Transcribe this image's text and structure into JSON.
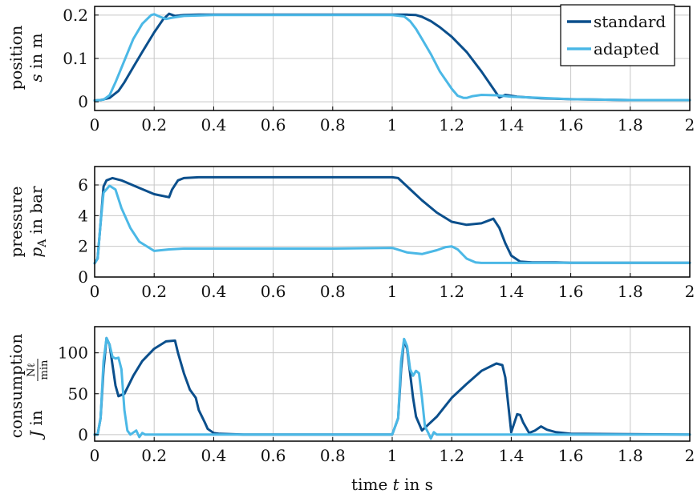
{
  "colors": {
    "standard": "#0b4f8c",
    "adapted": "#4bb8e6",
    "grid": "#c8c8c8",
    "axis": "#000000"
  },
  "xlabel": {
    "prefix": "time ",
    "var": "t",
    "suffix": " in s"
  },
  "legend": {
    "placement": "top-right",
    "standard": "standard",
    "adapted": "adapted"
  },
  "chart_data": [
    {
      "type": "line",
      "ylabel_line1": {
        "text": "position"
      },
      "ylabel_line2": {
        "var": "s",
        "rest": " in m"
      },
      "xlim": [
        0,
        2
      ],
      "ylim": [
        -0.02,
        0.22
      ],
      "xticks": [
        0,
        0.2,
        0.4,
        0.6,
        0.8,
        1,
        1.2,
        1.4,
        1.6,
        1.8,
        2
      ],
      "xticklabels": [
        "0",
        "0.2",
        "0.4",
        "0.6",
        "0.8",
        "1",
        "1.2",
        "1.4",
        "1.6",
        "1.8",
        "2"
      ],
      "yticks": [
        0,
        0.1,
        0.2
      ],
      "yticklabels": [
        "0",
        "0.1",
        "0.2"
      ],
      "grid": true,
      "series": [
        {
          "name": "standard",
          "x": [
            0,
            0.02,
            0.05,
            0.08,
            0.1,
            0.13,
            0.16,
            0.2,
            0.23,
            0.25,
            0.27,
            0.3,
            0.35,
            0.5,
            0.8,
            1.0,
            1.05,
            1.08,
            1.1,
            1.13,
            1.16,
            1.2,
            1.25,
            1.3,
            1.34,
            1.36,
            1.38,
            1.42,
            1.5,
            1.6,
            1.8,
            2.0
          ],
          "y": [
            0.003,
            0.004,
            0.009,
            0.025,
            0.045,
            0.08,
            0.115,
            0.16,
            0.19,
            0.203,
            0.198,
            0.2,
            0.201,
            0.201,
            0.201,
            0.201,
            0.201,
            0.2,
            0.196,
            0.186,
            0.172,
            0.15,
            0.115,
            0.07,
            0.03,
            0.01,
            0.016,
            0.012,
            0.008,
            0.006,
            0.004,
            0.004
          ]
        },
        {
          "name": "adapted",
          "x": [
            0,
            0.03,
            0.05,
            0.07,
            0.1,
            0.13,
            0.16,
            0.19,
            0.2,
            0.22,
            0.24,
            0.26,
            0.3,
            0.4,
            0.6,
            0.8,
            1.0,
            1.04,
            1.06,
            1.08,
            1.1,
            1.13,
            1.16,
            1.2,
            1.22,
            1.24,
            1.25,
            1.27,
            1.3,
            1.35,
            1.4,
            1.5,
            1.6,
            1.8,
            2.0
          ],
          "y": [
            0.003,
            0.005,
            0.015,
            0.045,
            0.095,
            0.145,
            0.18,
            0.2,
            0.202,
            0.196,
            0.191,
            0.194,
            0.198,
            0.2,
            0.2,
            0.2,
            0.2,
            0.197,
            0.186,
            0.168,
            0.145,
            0.11,
            0.07,
            0.03,
            0.014,
            0.009,
            0.009,
            0.013,
            0.016,
            0.015,
            0.012,
            0.009,
            0.006,
            0.004,
            0.004
          ]
        }
      ]
    },
    {
      "type": "line",
      "ylabel_line1": {
        "text": "pressure"
      },
      "ylabel_line2": {
        "var": "p",
        "sub": "A",
        "rest": " in bar"
      },
      "xlim": [
        0,
        2
      ],
      "ylim": [
        0,
        7.2
      ],
      "xticks": [
        0,
        0.2,
        0.4,
        0.6,
        0.8,
        1,
        1.2,
        1.4,
        1.6,
        1.8,
        2
      ],
      "xticklabels": [
        "0",
        "0.2",
        "0.4",
        "0.6",
        "0.8",
        "1",
        "1.2",
        "1.4",
        "1.6",
        "1.8",
        "2"
      ],
      "yticks": [
        0,
        2,
        4,
        6
      ],
      "yticklabels": [
        "0",
        "2",
        "4",
        "6"
      ],
      "grid": true,
      "series": [
        {
          "name": "standard",
          "x": [
            0,
            0.01,
            0.02,
            0.03,
            0.04,
            0.06,
            0.09,
            0.15,
            0.2,
            0.25,
            0.26,
            0.28,
            0.3,
            0.35,
            0.5,
            0.8,
            1.0,
            1.02,
            1.05,
            1.1,
            1.15,
            1.2,
            1.25,
            1.3,
            1.34,
            1.36,
            1.38,
            1.4,
            1.43,
            1.47,
            1.55,
            1.6,
            2.0
          ],
          "y": [
            0.9,
            1.2,
            3.5,
            5.9,
            6.3,
            6.45,
            6.3,
            5.8,
            5.4,
            5.2,
            5.7,
            6.3,
            6.45,
            6.5,
            6.5,
            6.5,
            6.5,
            6.45,
            5.9,
            5.0,
            4.2,
            3.6,
            3.4,
            3.5,
            3.8,
            3.2,
            2.2,
            1.4,
            1.0,
            0.95,
            0.95,
            0.93,
            0.93
          ]
        },
        {
          "name": "adapted",
          "x": [
            0,
            0.01,
            0.02,
            0.03,
            0.05,
            0.07,
            0.09,
            0.12,
            0.15,
            0.2,
            0.25,
            0.3,
            0.5,
            0.8,
            1.0,
            1.05,
            1.1,
            1.15,
            1.18,
            1.2,
            1.22,
            1.25,
            1.28,
            1.3,
            1.35,
            1.5,
            1.8,
            2.0
          ],
          "y": [
            0.9,
            1.2,
            3.5,
            5.5,
            5.95,
            5.7,
            4.5,
            3.2,
            2.3,
            1.7,
            1.8,
            1.85,
            1.85,
            1.85,
            1.9,
            1.6,
            1.5,
            1.75,
            1.95,
            2.0,
            1.8,
            1.2,
            0.95,
            0.92,
            0.92,
            0.93,
            0.93,
            0.93
          ]
        }
      ]
    },
    {
      "type": "line",
      "ylabel_line1": {
        "text": "consumption"
      },
      "ylabel_line2": {
        "var": "J",
        "rest": " in ",
        "frac_num": "Nℓ",
        "frac_den": "min"
      },
      "xlim": [
        0,
        2
      ],
      "ylim": [
        -8,
        132
      ],
      "xticks": [
        0,
        0.2,
        0.4,
        0.6,
        0.8,
        1,
        1.2,
        1.4,
        1.6,
        1.8,
        2
      ],
      "xticklabels": [
        "0",
        "0.2",
        "0.4",
        "0.6",
        "0.8",
        "1",
        "1.2",
        "1.4",
        "1.6",
        "1.8",
        "2"
      ],
      "yticks": [
        0,
        50,
        100
      ],
      "yticklabels": [
        "0",
        "50",
        "100"
      ],
      "grid": true,
      "series": [
        {
          "name": "standard",
          "x": [
            0,
            0.01,
            0.02,
            0.03,
            0.04,
            0.05,
            0.06,
            0.07,
            0.08,
            0.1,
            0.13,
            0.16,
            0.2,
            0.24,
            0.27,
            0.28,
            0.3,
            0.32,
            0.34,
            0.35,
            0.37,
            0.38,
            0.4,
            0.42,
            0.5,
            1.0,
            1.02,
            1.03,
            1.04,
            1.05,
            1.06,
            1.07,
            1.08,
            1.1,
            1.15,
            1.2,
            1.25,
            1.3,
            1.35,
            1.37,
            1.38,
            1.4,
            1.42,
            1.43,
            1.44,
            1.46,
            1.48,
            1.5,
            1.52,
            1.55,
            1.6,
            2.0
          ],
          "y": [
            0,
            0,
            20,
            80,
            118,
            110,
            85,
            60,
            47,
            50,
            72,
            90,
            105,
            114,
            115,
            100,
            75,
            55,
            45,
            30,
            15,
            7,
            2,
            1,
            0,
            0,
            20,
            80,
            116,
            105,
            75,
            45,
            22,
            5,
            22,
            45,
            62,
            78,
            87,
            85,
            70,
            3,
            25,
            24,
            15,
            2,
            5,
            10,
            6,
            3,
            1,
            0
          ]
        },
        {
          "name": "adapted",
          "x": [
            0,
            0.01,
            0.02,
            0.03,
            0.04,
            0.05,
            0.06,
            0.07,
            0.08,
            0.09,
            0.1,
            0.11,
            0.12,
            0.14,
            0.15,
            0.16,
            0.17,
            0.2,
            1.0,
            1.02,
            1.03,
            1.04,
            1.05,
            1.06,
            1.07,
            1.08,
            1.09,
            1.1,
            1.11,
            1.12,
            1.13,
            1.14,
            1.15,
            1.2,
            2.0
          ],
          "y": [
            0,
            0,
            20,
            90,
            118,
            110,
            95,
            93,
            94,
            80,
            30,
            5,
            0,
            5,
            -3,
            2,
            0,
            0,
            0,
            20,
            90,
            117,
            108,
            80,
            72,
            78,
            75,
            45,
            10,
            3,
            -5,
            3,
            0,
            0,
            0
          ]
        }
      ]
    }
  ]
}
